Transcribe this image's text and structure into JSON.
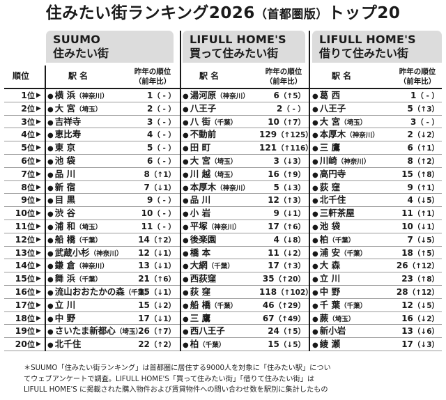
{
  "title": "住みたい街ランキング2026（首都圏版）トップ20",
  "title_main": "住みたい街ランキング",
  "title_year": "2026",
  "title_paren": "（首都圏版）",
  "title_tail": "トップ20",
  "headers": [
    {
      "line1": "SUUMO",
      "line2": "住みたい街"
    },
    {
      "line1": "LIFULL HOME'S",
      "line2": "買って住みたい街"
    },
    {
      "line1": "LIFULL HOME'S",
      "line2": "借りて住みたい街"
    }
  ],
  "col_rank": "順位",
  "col_station": "駅 名",
  "col_prev_line1": "昨年の順位",
  "col_prev_line2": "（前年比）",
  "rows": [
    {
      "rank": "1",
      "arrow": "▶",
      "s1": {
        "n": "横 浜",
        "p": "（神奈川）",
        "prev": "1",
        "chg": "（ - ）"
      },
      "s2": {
        "n": "湯河原",
        "p": "（神奈川）",
        "prev": "6",
        "chg": "（↑5）"
      },
      "s3": {
        "n": "葛 西",
        "p": "",
        "prev": "1",
        "chg": "（ - ）"
      }
    },
    {
      "rank": "2",
      "arrow": "▶",
      "s1": {
        "n": "大 宮",
        "p": "（埼玉）",
        "prev": "2",
        "chg": "（ - ）"
      },
      "s2": {
        "n": "八王子",
        "p": "",
        "prev": "2",
        "chg": "（ - ）"
      },
      "s3": {
        "n": "八王子",
        "p": "",
        "prev": "5",
        "chg": "（↑3）"
      }
    },
    {
      "rank": "3",
      "arrow": "▶",
      "s1": {
        "n": "吉祥寺",
        "p": "",
        "prev": "3",
        "chg": "（ - ）"
      },
      "s2": {
        "n": "八 街",
        "p": "（千葉）",
        "prev": "10",
        "chg": "（↑7）"
      },
      "s3": {
        "n": "大 宮",
        "p": "（埼玉）",
        "prev": "3",
        "chg": "（ - ）"
      }
    },
    {
      "rank": "4",
      "arrow": "▶",
      "s1": {
        "n": "恵比寿",
        "p": "",
        "prev": "4",
        "chg": "（ - ）"
      },
      "s2": {
        "n": "不動前",
        "p": "",
        "prev": "129",
        "chg": "（↑125）"
      },
      "s3": {
        "n": "本厚木",
        "p": "（神奈川）",
        "prev": "2",
        "chg": "（↓2）"
      }
    },
    {
      "rank": "5",
      "arrow": "▶",
      "s1": {
        "n": "東 京",
        "p": "",
        "prev": "5",
        "chg": "（ - ）"
      },
      "s2": {
        "n": "田 町",
        "p": "",
        "prev": "121",
        "chg": "（↑116）"
      },
      "s3": {
        "n": "三 鷹",
        "p": "",
        "prev": "6",
        "chg": "（↑1）"
      }
    },
    {
      "rank": "6",
      "arrow": "▶",
      "s1": {
        "n": "池 袋",
        "p": "",
        "prev": "6",
        "chg": "（ - ）"
      },
      "s2": {
        "n": "大 宮",
        "p": "（埼玉）",
        "prev": "3",
        "chg": "（↓3）"
      },
      "s3": {
        "n": "川崎",
        "p": "（神奈川）",
        "prev": "8",
        "chg": "（↑2）"
      }
    },
    {
      "rank": "7",
      "arrow": "▶",
      "s1": {
        "n": "品 川",
        "p": "",
        "prev": "8",
        "chg": "（↑1）"
      },
      "s2": {
        "n": "川 越",
        "p": "（埼玉）",
        "prev": "16",
        "chg": "（↑9）"
      },
      "s3": {
        "n": "高円寺",
        "p": "",
        "prev": "15",
        "chg": "（↑8）"
      }
    },
    {
      "rank": "8",
      "arrow": "▶",
      "s1": {
        "n": "新 宿",
        "p": "",
        "prev": "7",
        "chg": "（↓1）"
      },
      "s2": {
        "n": "本厚木",
        "p": "（神奈川）",
        "prev": "5",
        "chg": "（↓3）"
      },
      "s3": {
        "n": "荻 窪",
        "p": "",
        "prev": "9",
        "chg": "（↑1）"
      }
    },
    {
      "rank": "9",
      "arrow": "▶",
      "s1": {
        "n": "目 黒",
        "p": "",
        "prev": "9",
        "chg": "（ - ）"
      },
      "s2": {
        "n": "品 川",
        "p": "",
        "prev": "12",
        "chg": "（↑3）"
      },
      "s3": {
        "n": "北千住",
        "p": "",
        "prev": "4",
        "chg": "（↓5）"
      }
    },
    {
      "rank": "10",
      "arrow": "▶",
      "s1": {
        "n": "渋 谷",
        "p": "",
        "prev": "10",
        "chg": "（ - ）"
      },
      "s2": {
        "n": "小 岩",
        "p": "",
        "prev": "9",
        "chg": "（↓1）"
      },
      "s3": {
        "n": "三軒茶屋",
        "p": "",
        "prev": "11",
        "chg": "（↑1）"
      }
    },
    {
      "rank": "11",
      "arrow": "▶",
      "s1": {
        "n": "浦 和",
        "p": "（埼玉）",
        "prev": "11",
        "chg": "（ - ）"
      },
      "s2": {
        "n": "平塚",
        "p": "（神奈川）",
        "prev": "17",
        "chg": "（↑6）"
      },
      "s3": {
        "n": "池 袋",
        "p": "",
        "prev": "10",
        "chg": "（↓1）"
      }
    },
    {
      "rank": "12",
      "arrow": "▶",
      "s1": {
        "n": "船 橋",
        "p": "（千葉）",
        "prev": "14",
        "chg": "（↑2）"
      },
      "s2": {
        "n": "後楽園",
        "p": "",
        "prev": "4",
        "chg": "（↓8）"
      },
      "s3": {
        "n": "柏",
        "p": "（千葉）",
        "prev": "7",
        "chg": "（↓5）"
      }
    },
    {
      "rank": "13",
      "arrow": "▶",
      "s1": {
        "n": "武蔵小杉",
        "p": "（神奈川）",
        "prev": "12",
        "chg": "（↓1）"
      },
      "s2": {
        "n": "橋 本",
        "p": "",
        "prev": "11",
        "chg": "（↓2）"
      },
      "s3": {
        "n": "浦 安",
        "p": "（千葉）",
        "prev": "18",
        "chg": "（↑5）"
      }
    },
    {
      "rank": "14",
      "arrow": "▶",
      "s1": {
        "n": "鎌 倉",
        "p": "（神奈川）",
        "prev": "13",
        "chg": "（↓1）"
      },
      "s2": {
        "n": "大網",
        "p": "（千葉）",
        "prev": "17",
        "chg": "（↑3）"
      },
      "s3": {
        "n": "大 森",
        "p": "",
        "prev": "26",
        "chg": "（↑12）"
      }
    },
    {
      "rank": "15",
      "arrow": "▶",
      "s1": {
        "n": "舞 浜",
        "p": "（千葉）",
        "prev": "21",
        "chg": "（↑6）"
      },
      "s2": {
        "n": "西荻窪",
        "p": "",
        "prev": "35",
        "chg": "（↑20）"
      },
      "s3": {
        "n": "立 川",
        "p": "",
        "prev": "23",
        "chg": "（↑8）"
      }
    },
    {
      "rank": "16",
      "arrow": "▶",
      "s1": {
        "n": "流山おおたかの森",
        "p": "（千葉）",
        "prev": "15",
        "chg": "（↓1）"
      },
      "s2": {
        "n": "荻 窪",
        "p": "",
        "prev": "118",
        "chg": "（↑102）"
      },
      "s3": {
        "n": "中 野",
        "p": "",
        "prev": "28",
        "chg": "（↑12）"
      }
    },
    {
      "rank": "17",
      "arrow": "▶",
      "s1": {
        "n": "立 川",
        "p": "",
        "prev": "15",
        "chg": "（↓2）"
      },
      "s2": {
        "n": "船 橋",
        "p": "（千葉）",
        "prev": "46",
        "chg": "（↑29）"
      },
      "s3": {
        "n": "千 葉",
        "p": "（千葉）",
        "prev": "12",
        "chg": "（↓5）"
      }
    },
    {
      "rank": "18",
      "arrow": "▶",
      "s1": {
        "n": "中 野",
        "p": "",
        "prev": "17",
        "chg": "（↓1）"
      },
      "s2": {
        "n": "三 鷹",
        "p": "",
        "prev": "67",
        "chg": "（↑49）"
      },
      "s3": {
        "n": "蕨",
        "p": "（埼玉）",
        "prev": "16",
        "chg": "（↓2）"
      }
    },
    {
      "rank": "19",
      "arrow": "▶",
      "s1": {
        "n": "さいたま新都心",
        "p": "（埼玉）",
        "prev": "26",
        "chg": "（↑7）"
      },
      "s2": {
        "n": "西八王子",
        "p": "",
        "prev": "24",
        "chg": "（↑5）"
      },
      "s3": {
        "n": "新小岩",
        "p": "",
        "prev": "13",
        "chg": "（↓6）"
      }
    },
    {
      "rank": "20",
      "arrow": "▶",
      "s1": {
        "n": "北千住",
        "p": "",
        "prev": "22",
        "chg": "（↑2）"
      },
      "s2": {
        "n": "柏",
        "p": "（千葉）",
        "prev": "15",
        "chg": "（↓5）"
      },
      "s3": {
        "n": "綾 瀬",
        "p": "",
        "prev": "17",
        "chg": "（↓3）"
      }
    }
  ],
  "rank_suffix": "位",
  "footnote": [
    "＊SUUMO「住みたい街ランキング」は首都圏に居住する9000人を対象に「住みたい駅」につい",
    "てウェブアンケートで調査。LIFULL HOME'S「買って住みたい街」「借りて住みたい街」は",
    "LIFULL HOME'S に掲載された購入物件および賃貸物件への問い合わせ数を駅別に集計したもの"
  ]
}
